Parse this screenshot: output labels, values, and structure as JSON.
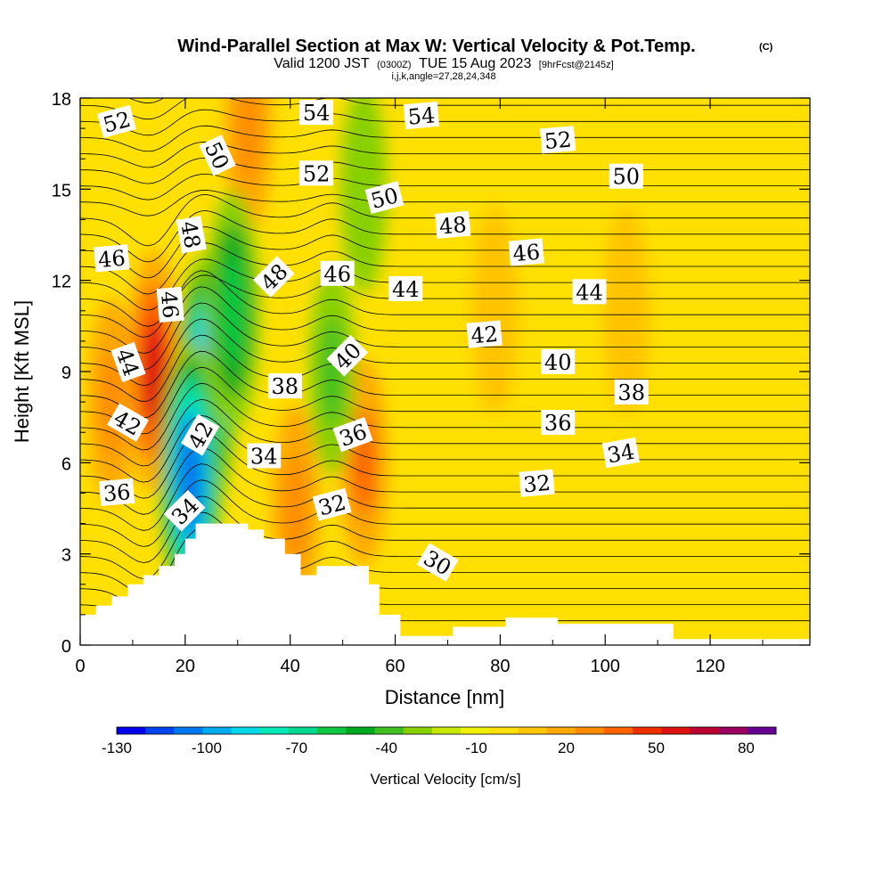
{
  "title": {
    "main": "Wind-Parallel Section at Max W: Vertical Velocity & Pot.Temp.",
    "copyright": "(C)",
    "valid_prefix": "Valid 1200 JST",
    "valid_utc": "(0300Z)",
    "valid_date": "TUE 15 Aug 2023",
    "forecast": "[9hrFcst@2145z]",
    "indices": "i,j,k,angle=27,28,24,348"
  },
  "chart_data": {
    "type": "heatmap",
    "xlabel": "Distance [nm]",
    "ylabel": "Height [Kft MSL]",
    "xlim": [
      0,
      139
    ],
    "ylim": [
      0,
      18
    ],
    "x_ticks": [
      0,
      20,
      40,
      60,
      80,
      100,
      120
    ],
    "y_ticks": [
      0,
      3,
      6,
      9,
      12,
      15,
      18
    ],
    "colorbar": {
      "label": "Vertical Velocity [cm/s]",
      "min": -130,
      "max": 90,
      "step": 10,
      "tick_values": [
        -130,
        -100,
        -70,
        -40,
        -10,
        20,
        50,
        80
      ],
      "tick_labels": [
        "-130",
        "-100",
        "-70",
        "-40",
        "-10",
        "20",
        "50",
        "80"
      ],
      "colors": [
        "#0000ee",
        "#0044ee",
        "#0077ee",
        "#00aaee",
        "#00d8e8",
        "#00e8b8",
        "#00d890",
        "#10c840",
        "#00aa20",
        "#40c020",
        "#88d000",
        "#c8e800",
        "#f0f000",
        "#ffe000",
        "#ffc400",
        "#ffa800",
        "#ff8c00",
        "#ff6400",
        "#ee3000",
        "#dd1010",
        "#bb0030",
        "#990060",
        "#660090"
      ]
    },
    "background_w_cms": 5,
    "vertical_velocity_features": [
      {
        "x": 14,
        "y": 9,
        "w": 60,
        "note": "strong updraft"
      },
      {
        "x": 6,
        "y": 8,
        "w": 35
      },
      {
        "x": 32,
        "y": 17,
        "w": 30
      },
      {
        "x": 41,
        "y": 4.5,
        "w": 35
      },
      {
        "x": 54,
        "y": 6,
        "w": 40
      },
      {
        "x": 24,
        "y": 8.5,
        "w": -100,
        "note": "strong downdraft"
      },
      {
        "x": 21,
        "y": 5.5,
        "w": -110
      },
      {
        "x": 29,
        "y": 11,
        "w": -60
      },
      {
        "x": 48,
        "y": 9,
        "w": -40
      },
      {
        "x": 54,
        "y": 15,
        "w": -30
      },
      {
        "x": 79,
        "y": 11,
        "w": 10
      },
      {
        "x": 104,
        "y": 11,
        "w": 12
      }
    ],
    "terrain_kft": [
      [
        0,
        1.0
      ],
      [
        3,
        1.3
      ],
      [
        6,
        1.6
      ],
      [
        9,
        2.0
      ],
      [
        12,
        2.3
      ],
      [
        15,
        2.6
      ],
      [
        18,
        3.0
      ],
      [
        20,
        3.5
      ],
      [
        22,
        4.0
      ],
      [
        32,
        3.8
      ],
      [
        35,
        3.5
      ],
      [
        39,
        3.0
      ],
      [
        42,
        2.3
      ],
      [
        45,
        2.6
      ],
      [
        55,
        2.0
      ],
      [
        57,
        1.0
      ],
      [
        61,
        0.3
      ],
      [
        71,
        0.6
      ],
      [
        81,
        0.9
      ],
      [
        91,
        0.7
      ],
      [
        113,
        0.2
      ],
      [
        139,
        0.2
      ]
    ],
    "theta_contour_labels": [
      {
        "text": "52",
        "x": 7,
        "y": 17.2,
        "angle": -15
      },
      {
        "text": "54",
        "x": 45,
        "y": 17.5,
        "angle": 0
      },
      {
        "text": "54",
        "x": 65,
        "y": 17.4,
        "angle": -5
      },
      {
        "text": "50",
        "x": 26,
        "y": 16.1,
        "angle": 65
      },
      {
        "text": "52",
        "x": 45,
        "y": 15.5,
        "angle": 0
      },
      {
        "text": "52",
        "x": 91,
        "y": 16.6,
        "angle": -5
      },
      {
        "text": "50",
        "x": 58,
        "y": 14.7,
        "angle": -15
      },
      {
        "text": "50",
        "x": 104,
        "y": 15.4,
        "angle": 0
      },
      {
        "text": "48",
        "x": 21,
        "y": 13.5,
        "angle": 80
      },
      {
        "text": "48",
        "x": 71,
        "y": 13.8,
        "angle": -5
      },
      {
        "text": "48",
        "x": 37,
        "y": 12.1,
        "angle": -45
      },
      {
        "text": "46",
        "x": 6,
        "y": 12.7,
        "angle": -5
      },
      {
        "text": "46",
        "x": 85,
        "y": 12.9,
        "angle": -5
      },
      {
        "text": "46",
        "x": 49,
        "y": 12.2,
        "angle": 0
      },
      {
        "text": "46",
        "x": 17,
        "y": 11.2,
        "angle": 85
      },
      {
        "text": "44",
        "x": 62,
        "y": 11.7,
        "angle": 0
      },
      {
        "text": "44",
        "x": 97,
        "y": 11.6,
        "angle": 0
      },
      {
        "text": "44",
        "x": 9,
        "y": 9.3,
        "angle": 70
      },
      {
        "text": "42",
        "x": 77,
        "y": 10.2,
        "angle": -5
      },
      {
        "text": "40",
        "x": 51,
        "y": 9.5,
        "angle": -45
      },
      {
        "text": "40",
        "x": 91,
        "y": 9.3,
        "angle": 0
      },
      {
        "text": "38",
        "x": 39,
        "y": 8.5,
        "angle": 0
      },
      {
        "text": "38",
        "x": 105,
        "y": 8.3,
        "angle": 0
      },
      {
        "text": "42",
        "x": 9,
        "y": 7.3,
        "angle": 30
      },
      {
        "text": "42",
        "x": 23,
        "y": 6.9,
        "angle": -60
      },
      {
        "text": "36",
        "x": 52,
        "y": 6.9,
        "angle": -20
      },
      {
        "text": "36",
        "x": 91,
        "y": 7.3,
        "angle": 0
      },
      {
        "text": "34",
        "x": 35,
        "y": 6.2,
        "angle": 0
      },
      {
        "text": "34",
        "x": 103,
        "y": 6.3,
        "angle": -10
      },
      {
        "text": "36",
        "x": 7,
        "y": 5.0,
        "angle": -5
      },
      {
        "text": "32",
        "x": 48,
        "y": 4.6,
        "angle": -15
      },
      {
        "text": "32",
        "x": 87,
        "y": 5.3,
        "angle": -5
      },
      {
        "text": "34",
        "x": 20,
        "y": 4.4,
        "angle": -45
      },
      {
        "text": "30",
        "x": 68,
        "y": 2.7,
        "angle": 30
      }
    ]
  }
}
